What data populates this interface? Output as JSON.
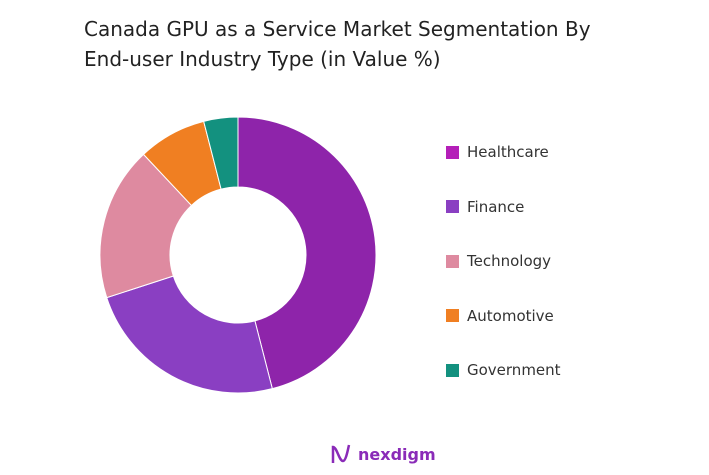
{
  "chart_data": {
    "type": "pie",
    "donut": true,
    "title": "Canada GPU as a Service Market Segmentation By End-user Industry Type (in Value %)",
    "categories": [
      "Healthcare",
      "Finance",
      "Technology",
      "Automotive",
      "Government"
    ],
    "values": [
      46,
      24,
      18,
      8,
      4
    ],
    "colors": [
      "#8E24AA",
      "#8A3FC2",
      "#DE8AA0",
      "#F07F22",
      "#13917F"
    ],
    "legend_colors": [
      "#B41FB8",
      "#8A3FC2",
      "#DE8AA0",
      "#F07F22",
      "#13917F"
    ],
    "legend_position": "right"
  },
  "title_lines": [
    "Canada GPU as a Service Market Segmentation By",
    "End-user Industry Type (in Value %)"
  ],
  "logo": {
    "text": "nexdigm"
  }
}
